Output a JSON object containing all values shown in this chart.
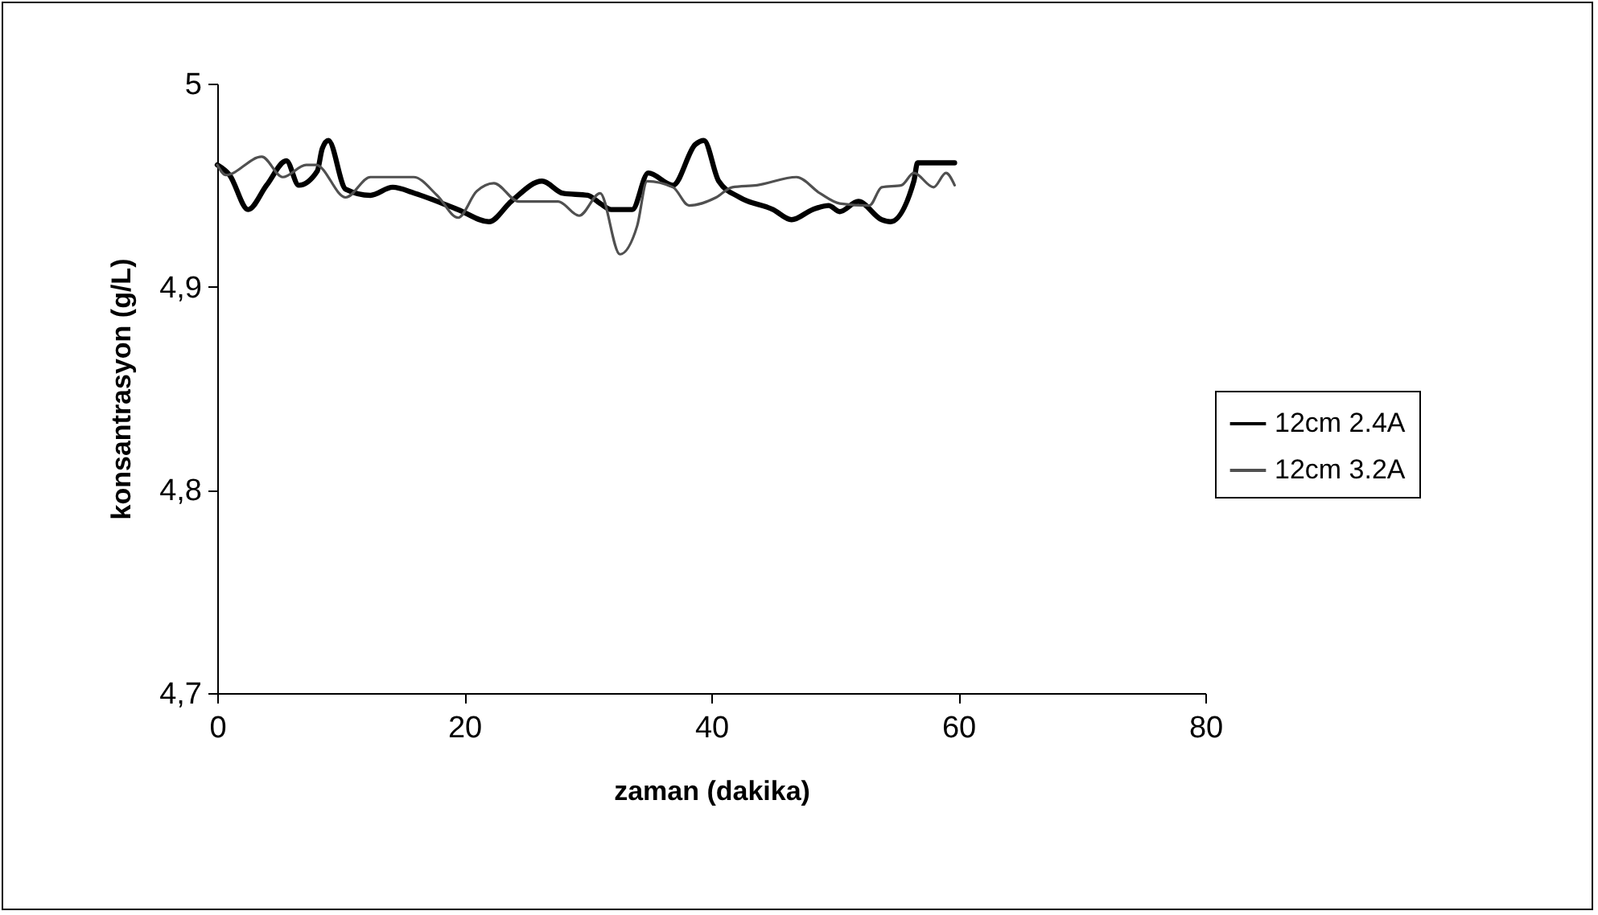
{
  "chart_data": {
    "type": "line",
    "xlabel": "zaman (dakika)",
    "ylabel": "konsantrasyon (g/L)",
    "xlim": [
      0,
      80
    ],
    "xticks": [
      0,
      20,
      40,
      60,
      80
    ],
    "ylim": [
      4.7,
      5
    ],
    "yticks": [
      {
        "value": 4.7,
        "label": "4,7"
      },
      {
        "value": 4.8,
        "label": "4,8"
      },
      {
        "value": 4.9,
        "label": "4,9"
      },
      {
        "value": 5,
        "label": "5"
      }
    ],
    "grid": false,
    "legend": "right",
    "marker": "none",
    "line_style": "solid",
    "series": [
      {
        "name": "12cm 2.4A",
        "color": "#000000",
        "x": [
          0,
          1,
          2.5,
          4,
          5.6,
          6.6,
          8.1,
          8.5,
          9,
          10.4,
          12.4,
          14.2,
          16,
          19.5,
          22,
          23.8,
          26.3,
          28,
          30,
          31,
          31.9,
          33.6,
          34.9,
          36.9,
          38.7,
          39.4,
          40.6,
          42.3,
          45,
          46.5,
          48.2,
          49.5,
          50.4,
          51.9,
          53.8,
          54.5,
          56.4,
          56.7,
          59.7
        ],
        "values": [
          4.96,
          4.955,
          4.938,
          4.95,
          4.962,
          4.95,
          4.957,
          4.968,
          4.972,
          4.948,
          4.945,
          4.949,
          4.946,
          4.938,
          4.932,
          4.942,
          4.952,
          4.946,
          4.945,
          4.941,
          4.938,
          4.938,
          4.956,
          4.95,
          4.97,
          4.972,
          4.952,
          4.944,
          4.938,
          4.933,
          4.938,
          4.94,
          4.937,
          4.942,
          4.933,
          4.932,
          4.952,
          4.961,
          4.961
        ]
      },
      {
        "name": "12cm 3.2A",
        "color": "#505050",
        "x": [
          0,
          0.7,
          3.6,
          5.3,
          7.2,
          8,
          10.4,
          12.4,
          15.9,
          17.8,
          19.5,
          21,
          22.4,
          24.4,
          27.6,
          29.3,
          31,
          32.6,
          34,
          34.8,
          36.9,
          38.2,
          40.4,
          41.7,
          43.7,
          46.9,
          48.8,
          50.4,
          52.8,
          53.8,
          55.4,
          56.4,
          58,
          59,
          59.7
        ],
        "values": [
          4.96,
          4.955,
          4.964,
          4.954,
          4.96,
          4.96,
          4.944,
          4.954,
          4.954,
          4.945,
          4.934,
          4.947,
          4.951,
          4.942,
          4.942,
          4.935,
          4.946,
          4.916,
          4.93,
          4.952,
          4.949,
          4.94,
          4.944,
          4.949,
          4.95,
          4.954,
          4.946,
          4.941,
          4.94,
          4.949,
          4.95,
          4.956,
          4.949,
          4.956,
          4.95
        ]
      }
    ]
  }
}
